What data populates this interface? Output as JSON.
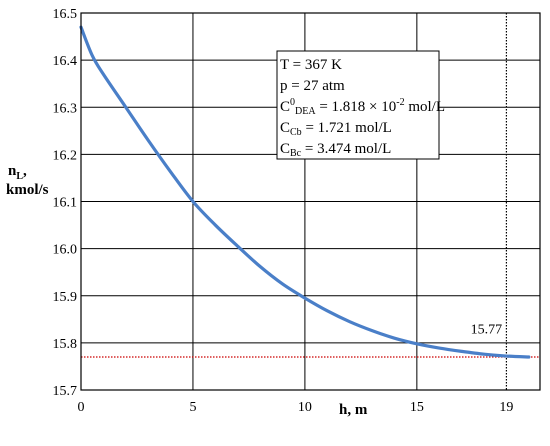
{
  "chart_data": {
    "type": "line",
    "xlabel": "h, m",
    "ylabel_main": "n",
    "ylabel_sub": "L",
    "ylabel_suffix": ",",
    "ylabel_line2": "kmol/s",
    "xlim": [
      0,
      20.5
    ],
    "ylim": [
      15.7,
      16.5
    ],
    "x_ticks": [
      0,
      5,
      10,
      15,
      19
    ],
    "x_tick_labels": [
      "0",
      "5",
      "10",
      "15",
      "19"
    ],
    "y_ticks": [
      15.7,
      15.8,
      15.9,
      16.0,
      16.1,
      16.2,
      16.3,
      16.4,
      16.5
    ],
    "y_tick_labels": [
      "15.7",
      "15.8",
      "15.9",
      "16.0",
      "16.1",
      "16.2",
      "16.3",
      "16.4",
      "16.5"
    ],
    "x_gridlines": [
      0,
      5,
      10,
      15
    ],
    "y_gridlines": [
      15.7,
      15.8,
      15.9,
      16.0,
      16.1,
      16.2,
      16.3,
      16.4,
      16.5
    ],
    "grid": true,
    "series": [
      {
        "color": "#4a7fc8",
        "x": [
          0,
          0.5,
          1,
          2,
          3,
          4,
          5,
          6,
          7,
          8,
          9,
          10,
          11,
          12,
          13,
          14,
          15,
          16,
          17,
          18,
          19,
          20
        ],
        "y": [
          16.47,
          16.41,
          16.37,
          16.3,
          16.23,
          16.163,
          16.1,
          16.05,
          16.005,
          15.962,
          15.925,
          15.895,
          15.868,
          15.845,
          15.826,
          15.81,
          15.798,
          15.789,
          15.782,
          15.776,
          15.772,
          15.77
        ]
      }
    ],
    "reference_lines": [
      {
        "orientation": "horizontal",
        "value": 15.77,
        "color": "#cc0000",
        "style": "dotted"
      },
      {
        "orientation": "vertical",
        "value": 19,
        "color": "#000000",
        "style": "dotted"
      }
    ],
    "annotations": [
      {
        "text": "15.77",
        "x": 17.4,
        "y": 15.82
      }
    ],
    "legend_box": {
      "position": "top-center",
      "lines": [
        {
          "main": "T = 367 K",
          "sup": "",
          "sub": "",
          "rest": "",
          "sup2": "",
          "tail": ""
        },
        {
          "main": "p = 27 atm",
          "sup": "",
          "sub": "",
          "rest": "",
          "sup2": "",
          "tail": ""
        },
        {
          "main": "C",
          "sup": "0",
          "sub": "DEA",
          "rest": " = 1.818 × 10",
          "sup2": "-2",
          "tail": " mol/L"
        },
        {
          "main": "C",
          "sup": "",
          "sub": "Cb",
          "rest": " = 1.721 mol/L",
          "sup2": "",
          "tail": ""
        },
        {
          "main": "C",
          "sup": "",
          "sub": "Bc",
          "rest": " = 3.474 mol/L",
          "sup2": "",
          "tail": ""
        }
      ]
    }
  }
}
